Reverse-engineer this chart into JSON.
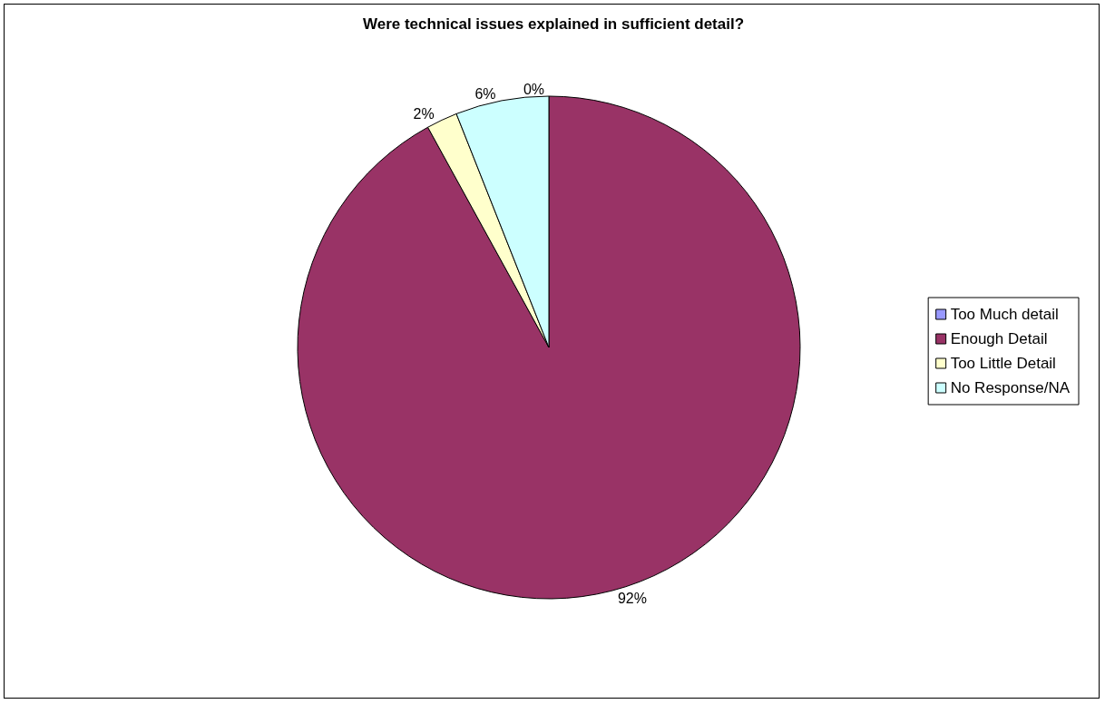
{
  "chart_data": {
    "type": "pie",
    "title": "Were technical issues explained in sufficient detail?",
    "categories": [
      "Too Much detail",
      "Enough Detail",
      "Too Little Detail",
      "No Response/NA"
    ],
    "values": [
      0,
      92,
      2,
      6
    ],
    "value_labels": [
      "0%",
      "92%",
      "2%",
      "6%"
    ],
    "colors": [
      "#9999ff",
      "#993366",
      "#ffffcc",
      "#ccffff"
    ],
    "legend": "right"
  }
}
